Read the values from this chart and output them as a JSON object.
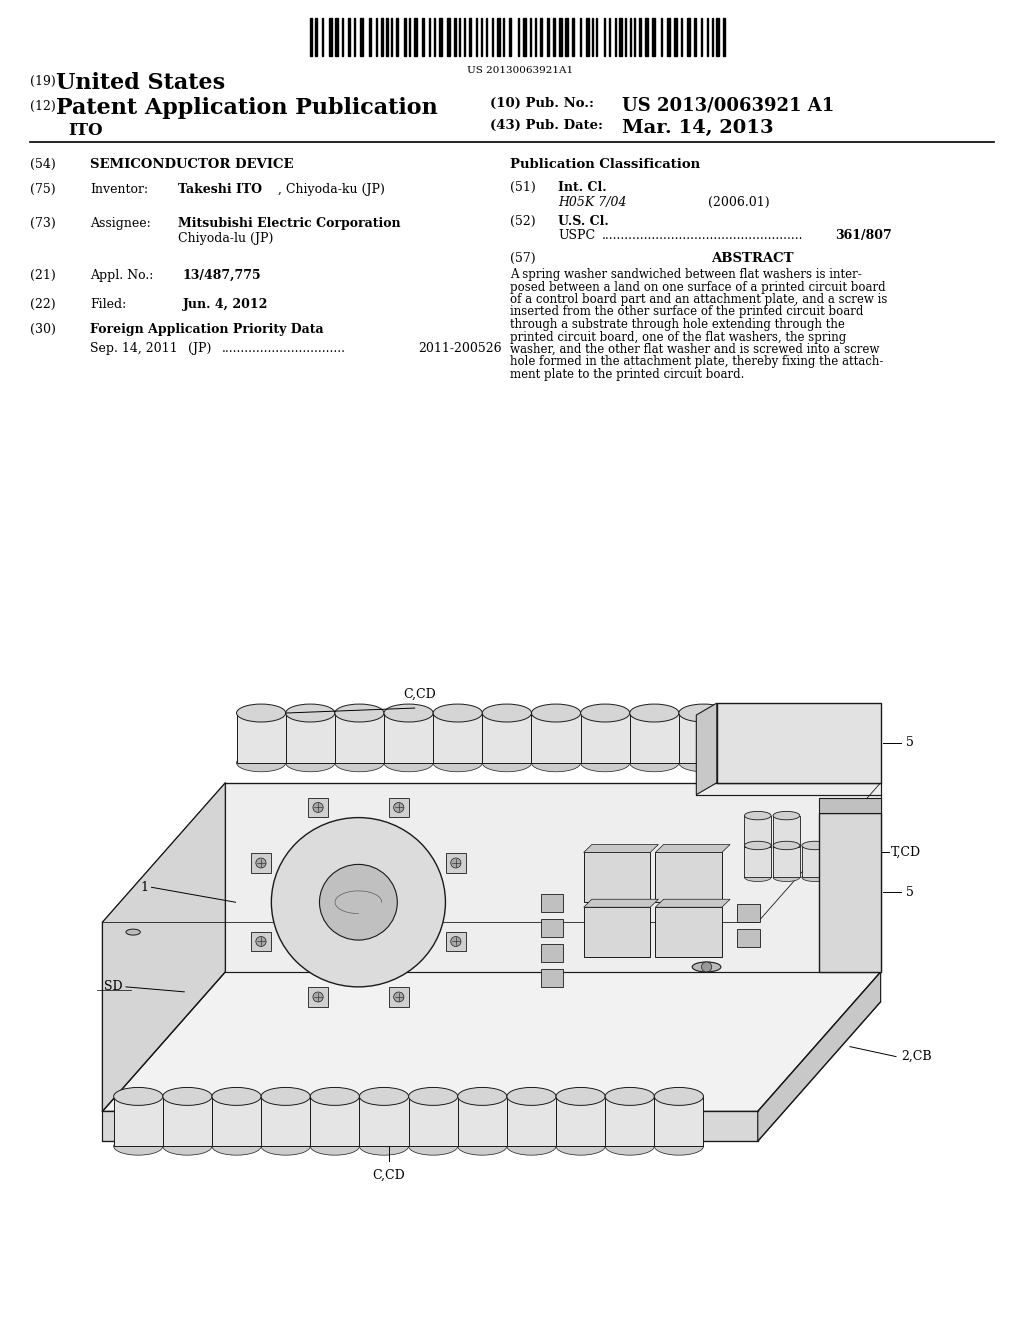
{
  "background_color": "#ffffff",
  "barcode_text": "US 20130063921A1",
  "header_19": "(19)",
  "header_us": "United States",
  "header_12": "(12)",
  "header_pub": "Patent Application Publication",
  "header_ito": "ITO",
  "header_10": "(10) Pub. No.:",
  "header_pubno": "US 2013/0063921 A1",
  "header_43": "(43) Pub. Date:",
  "header_date": "Mar. 14, 2013",
  "title_num": "(54)",
  "title": "SEMICONDUCTOR DEVICE",
  "pub_class_header": "Publication Classification",
  "inventor_num": "(75)",
  "inventor_label": "Inventor:",
  "inventor_name": "Takeshi ITO",
  "inventor_loc": ", Chiyoda-ku (JP)",
  "assignee_num": "(73)",
  "assignee_label": "Assignee:",
  "assignee_name": "Mitsubishi Electric Corporation",
  "assignee_city": "Chiyoda-lu (JP)",
  "appl_num": "(21)",
  "appl_label": "Appl. No.:",
  "appl_no": "13/487,775",
  "filed_num": "(22)",
  "filed_label": "Filed:",
  "filed_date": "Jun. 4, 2012",
  "foreign_num": "(30)",
  "foreign_label": "Foreign Application Priority Data",
  "foreign_date": "Sep. 14, 2011",
  "foreign_country": "(JP)",
  "foreign_appno": "2011-200526",
  "intcl_num": "(51)",
  "intcl_label": "Int. Cl.",
  "intcl_code": "H05K 7/04",
  "intcl_year": "(2006.01)",
  "uscl_num": "(52)",
  "uscl_label": "U.S. Cl.",
  "uspc_label": "USPC",
  "uspc_no": "361/807",
  "abstract_num": "(57)",
  "abstract_label": "ABSTRACT",
  "abstract_lines": [
    "A spring washer sandwiched between flat washers is inter-",
    "posed between a land on one surface of a printed circuit board",
    "of a control board part and an attachment plate, and a screw is",
    "inserted from the other surface of the printed circuit board",
    "through a substrate through hole extending through the",
    "printed circuit board, one of the flat washers, the spring",
    "washer, and the other flat washer and is screwed into a screw",
    "hole formed in the attachment plate, thereby fixing the attach-",
    "ment plate to the printed circuit board."
  ],
  "diagram_label_CCD_top": "C,CD",
  "diagram_label_TCD": "T,CD",
  "diagram_label_1": "1",
  "diagram_label_SD": "SD",
  "diagram_label_5a": "5",
  "diagram_label_5b": "5",
  "diagram_label_2CB": "2,CB",
  "diagram_label_CCD_bot": "C,CD"
}
